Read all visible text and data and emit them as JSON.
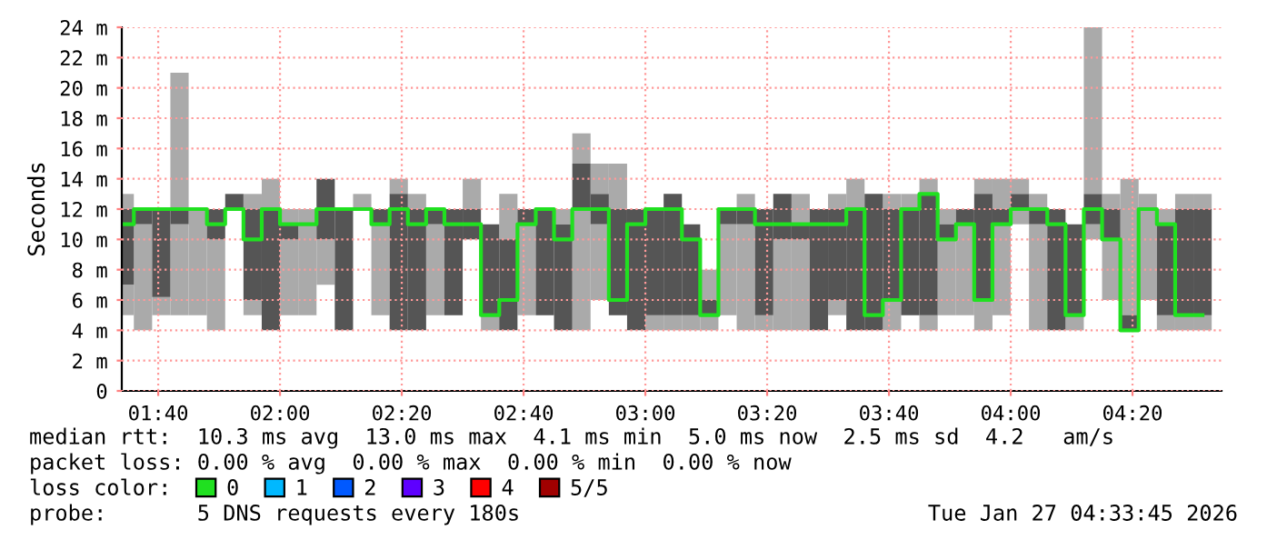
{
  "chart_data": {
    "type": "bar",
    "ylabel": "Seconds",
    "x": [
      1.575,
      1.625,
      1.675,
      1.725,
      1.775,
      1.825,
      1.875,
      1.925,
      1.975,
      2.025,
      2.075,
      2.125,
      2.175,
      2.225,
      2.275,
      2.325,
      2.375,
      2.425,
      2.475,
      2.525,
      2.575,
      2.625,
      2.675,
      2.725,
      2.775,
      2.825,
      2.875,
      2.925,
      2.975,
      3.025,
      3.075,
      3.125,
      3.175,
      3.225,
      3.275,
      3.325,
      3.375,
      3.425,
      3.475,
      3.525,
      3.575,
      3.625,
      3.675,
      3.725,
      3.775,
      3.825,
      3.875,
      3.925,
      3.975,
      4.025,
      4.075,
      4.125,
      4.175,
      4.225,
      4.275,
      4.325,
      4.375,
      4.425,
      4.475,
      4.525
    ],
    "xlim": [
      1.567,
      4.577
    ],
    "xticks": [
      {
        "value": 1.6667,
        "label": "01:40"
      },
      {
        "value": 2.0,
        "label": "02:00"
      },
      {
        "value": 2.3333,
        "label": "02:20"
      },
      {
        "value": 2.6667,
        "label": "02:40"
      },
      {
        "value": 3.0,
        "label": "03:00"
      },
      {
        "value": 3.3333,
        "label": "03:20"
      },
      {
        "value": 3.6667,
        "label": "03:40"
      },
      {
        "value": 4.0,
        "label": "04:00"
      },
      {
        "value": 4.3333,
        "label": "04:20"
      }
    ],
    "ylim": [
      0,
      24
    ],
    "yticks": [
      0,
      {
        "value": 2,
        "label": "2 m"
      },
      {
        "value": 4,
        "label": "4 m"
      },
      {
        "value": 6,
        "label": "6 m"
      },
      {
        "value": 8,
        "label": "8 m"
      },
      {
        "value": 10,
        "label": "10 m"
      },
      {
        "value": 12,
        "label": "12 m"
      },
      {
        "value": 14,
        "label": "14 m"
      },
      {
        "value": 16,
        "label": "16 m"
      },
      {
        "value": 18,
        "label": "18 m"
      },
      {
        "value": 20,
        "label": "20 m"
      },
      {
        "value": 22,
        "label": "22 m"
      },
      {
        "value": 24,
        "label": "24 m"
      }
    ],
    "grid": true,
    "legend": "bottom",
    "series": [
      {
        "color": "#aaaaaa",
        "base": [
          5,
          4,
          5,
          5,
          5,
          4,
          null,
          5,
          null,
          5,
          5,
          7,
          null,
          12,
          5,
          null,
          null,
          5,
          null,
          null,
          4,
          null,
          5,
          null,
          null,
          4,
          6,
          null,
          null,
          4,
          4,
          4,
          4,
          5,
          4,
          4,
          4,
          4,
          null,
          5,
          null,
          null,
          4,
          null,
          4,
          5,
          5,
          4,
          5,
          11,
          4,
          null,
          4,
          10,
          6,
          null,
          6,
          4,
          4,
          4
        ],
        "values": [
          2,
          7,
          1.2,
          6,
          7,
          6,
          null,
          1,
          null,
          5,
          7,
          3,
          null,
          1,
          6,
          null,
          null,
          6,
          null,
          null,
          1,
          null,
          6,
          null,
          null,
          8,
          5,
          null,
          null,
          1,
          1,
          1,
          1,
          6,
          7,
          1,
          6,
          6,
          null,
          1,
          null,
          null,
          2,
          null,
          1,
          5,
          6,
          2,
          6,
          1,
          7,
          null,
          1,
          1,
          4,
          null,
          7,
          1,
          1,
          1
        ]
      },
      {
        "color": "#aaaaaa",
        "base": [
          12,
          null,
          null,
          12,
          null,
          null,
          null,
          12,
          12,
          11,
          null,
          null,
          null,
          null,
          null,
          13,
          12,
          null,
          null,
          12,
          null,
          10,
          null,
          null,
          11,
          15,
          13,
          12,
          null,
          null,
          null,
          null,
          6,
          null,
          12,
          null,
          null,
          11,
          null,
          12,
          12,
          null,
          12,
          12,
          13,
          11,
          null,
          13,
          12,
          13,
          12,
          null,
          null,
          13,
          12,
          5,
          null,
          11,
          12,
          12
        ],
        "values": [
          1,
          null,
          null,
          9,
          null,
          null,
          null,
          1,
          2,
          1,
          null,
          null,
          null,
          null,
          null,
          1,
          1,
          null,
          null,
          2,
          null,
          3,
          null,
          null,
          1,
          2,
          2,
          3,
          null,
          null,
          null,
          null,
          2,
          null,
          1,
          null,
          null,
          2,
          null,
          1,
          2,
          null,
          1,
          1,
          1,
          1,
          null,
          1,
          2,
          1,
          1,
          null,
          null,
          11,
          1,
          9,
          null,
          1,
          1,
          1
        ]
      },
      {
        "color": "#555555",
        "base": [
          7,
          11,
          6.2,
          11,
          null,
          10,
          12,
          6,
          4,
          10,
          null,
          10,
          4,
          null,
          11,
          4,
          4,
          11,
          5,
          10,
          5,
          4,
          11,
          5,
          4,
          12,
          11,
          5,
          4,
          5,
          5,
          5,
          5,
          11,
          11,
          5,
          10,
          10,
          4,
          6,
          4,
          4,
          6,
          5,
          5,
          10,
          11,
          6,
          11,
          12,
          11,
          4,
          5,
          11,
          10,
          4,
          null,
          5,
          5,
          5
        ],
        "values": [
          5,
          1,
          5.8,
          1,
          null,
          2,
          1,
          6,
          8,
          1,
          null,
          4,
          8,
          null,
          1,
          9,
          8,
          1,
          7,
          2,
          6,
          6,
          1,
          7,
          7,
          3,
          2,
          7,
          8,
          7,
          8,
          6,
          1,
          1,
          1,
          7,
          3,
          1,
          8,
          6,
          8,
          9,
          6,
          7,
          8,
          1,
          1,
          7,
          1,
          1,
          1,
          8,
          6,
          2,
          2,
          1,
          null,
          6,
          7,
          7
        ]
      },
      {
        "type": "step",
        "name": "0",
        "color": "#20e020",
        "values": [
          11,
          12,
          12,
          12,
          12,
          11,
          12,
          10,
          12,
          11,
          11,
          12,
          12,
          12,
          11,
          12,
          11,
          12,
          11,
          11,
          5,
          6,
          11,
          12,
          10,
          12,
          12,
          6,
          11,
          12,
          12,
          10,
          5,
          12,
          12,
          11,
          11,
          11,
          11,
          11,
          12,
          5,
          6,
          12,
          13,
          10,
          11,
          6,
          11,
          12,
          12,
          11,
          5,
          12,
          10,
          4,
          12,
          11,
          5,
          5
        ]
      },
      {
        "type": "step",
        "name": "1",
        "color": "#00b8ff",
        "values": [
          null,
          null,
          null,
          null,
          null,
          null,
          null,
          null,
          null,
          null,
          null,
          null,
          null,
          null,
          null,
          null,
          null,
          null,
          null,
          null,
          null,
          null,
          null,
          null,
          null,
          null,
          null,
          null,
          null,
          null,
          null,
          null,
          null,
          null,
          null,
          null,
          null,
          null,
          null,
          null,
          null,
          null,
          null,
          null,
          null,
          null,
          null,
          null,
          null,
          null,
          null,
          null,
          null,
          null,
          null,
          null,
          null,
          null,
          null,
          null
        ]
      },
      {
        "type": "step",
        "name": "2",
        "color": "#0059ff",
        "values": [
          null,
          null,
          null,
          null,
          null,
          null,
          null,
          null,
          null,
          null,
          null,
          null,
          null,
          null,
          null,
          null,
          null,
          null,
          null,
          null,
          null,
          null,
          null,
          null,
          null,
          null,
          null,
          null,
          null,
          null,
          null,
          null,
          null,
          null,
          null,
          null,
          null,
          null,
          null,
          null,
          null,
          null,
          null,
          null,
          null,
          null,
          null,
          null,
          null,
          null,
          null,
          null,
          null,
          null,
          null,
          null,
          null,
          null,
          null,
          null
        ]
      },
      {
        "type": "step",
        "name": "3",
        "color": "#5e00ff",
        "values": [
          null,
          null,
          null,
          null,
          null,
          null,
          null,
          null,
          null,
          null,
          null,
          null,
          null,
          null,
          null,
          null,
          null,
          null,
          null,
          null,
          null,
          null,
          null,
          null,
          null,
          null,
          null,
          null,
          null,
          null,
          null,
          null,
          null,
          null,
          null,
          null,
          null,
          null,
          null,
          null,
          null,
          null,
          null,
          null,
          null,
          null,
          null,
          null,
          null,
          null,
          null,
          null,
          null,
          null,
          null,
          null,
          null,
          null,
          null,
          null
        ]
      },
      {
        "type": "step",
        "name": "4",
        "color": "#ff0000",
        "values": [
          null,
          null,
          null,
          null,
          null,
          null,
          null,
          null,
          null,
          null,
          null,
          null,
          null,
          null,
          null,
          null,
          null,
          null,
          null,
          null,
          null,
          null,
          null,
          null,
          null,
          null,
          null,
          null,
          null,
          null,
          null,
          null,
          null,
          null,
          null,
          null,
          null,
          null,
          null,
          null,
          null,
          null,
          null,
          null,
          null,
          null,
          null,
          null,
          null,
          null,
          null,
          null,
          null,
          null,
          null,
          null,
          null,
          null,
          null,
          null
        ]
      },
      {
        "type": "step",
        "name": "5/5",
        "color": "#a00000",
        "values": [
          null,
          null,
          null,
          null,
          null,
          null,
          null,
          null,
          null,
          null,
          null,
          null,
          null,
          null,
          null,
          null,
          null,
          null,
          null,
          null,
          null,
          null,
          null,
          null,
          null,
          null,
          null,
          null,
          null,
          null,
          null,
          null,
          null,
          null,
          null,
          null,
          null,
          null,
          null,
          null,
          null,
          null,
          null,
          null,
          null,
          null,
          null,
          null,
          null,
          null,
          null,
          null,
          null,
          null,
          null,
          null,
          null,
          null,
          null,
          null
        ]
      }
    ],
    "annotations": [
      "median rtt:  10.3 ms avg  13.0 ms max  4.1 ms min  5.0 ms now  2.5 ms sd  4.2   am/s",
      "packet loss: 0.00 % avg  0.00 % max  0.00 % min  0.00 % now",
      "loss color:",
      "probe:       5 DNS requests every 180s",
      "Tue Jan 27 04:33:45 2026"
    ]
  }
}
